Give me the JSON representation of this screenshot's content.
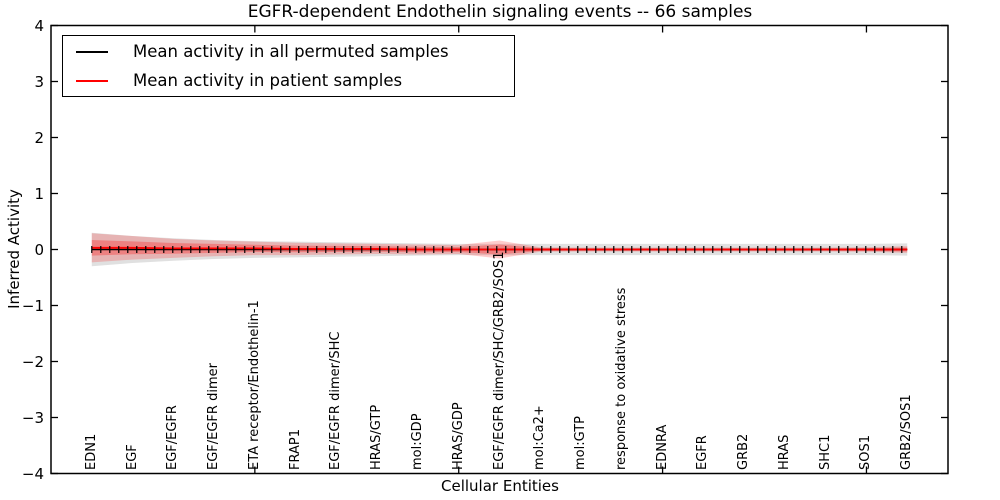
{
  "chart_data": {
    "type": "line",
    "title": "EGFR-dependent Endothelin signaling events -- 66 samples",
    "xlabel": "Cellular Entities",
    "ylabel": "Inferred Activity",
    "ylim": [
      -4,
      4
    ],
    "xlim": [
      0,
      22
    ],
    "ytick_labels": [
      "4",
      "3",
      "2",
      "1",
      "0",
      "−1",
      "−2",
      "−3",
      "−4"
    ],
    "ytick_values": [
      4,
      3,
      2,
      1,
      0,
      -1,
      -2,
      -3,
      -4
    ],
    "xtick_positions": [
      5,
      10,
      15,
      20
    ],
    "grid": false,
    "legend_position": "upper left",
    "categories": [
      "EDN1",
      "EGF",
      "EGF/EGFR",
      "EGF/EGFR dimer",
      "ETA receptor/Endothelin-1",
      "FRAP1",
      "EGF/EGFR dimer/SHC",
      "HRAS/GTP",
      "mol:GDP",
      "HRAS/GDP",
      "EGF/EGFR dimer/SHC/GRB2/SOS1",
      "mol:Ca2+",
      "mol:GTP",
      "response to oxidative stress",
      "EDNRA",
      "EGFR",
      "GRB2",
      "HRAS",
      "SHC1",
      "SOS1",
      "GRB2/SOS1"
    ],
    "series": [
      {
        "name": "Mean activity in all permuted samples",
        "color": "#000000",
        "values": [
          0,
          0,
          0,
          0,
          0,
          0,
          0,
          0,
          0,
          0,
          0,
          0,
          0,
          0,
          0,
          0,
          0,
          0,
          0,
          0,
          0
        ]
      },
      {
        "name": "Mean activity in patient samples",
        "color": "#ff0000",
        "values": [
          0.03,
          0.03,
          0.02,
          0.02,
          0.02,
          0.01,
          0.01,
          0.01,
          0,
          0,
          0,
          0,
          0,
          0,
          0,
          0,
          0,
          0,
          0,
          0,
          0
        ]
      }
    ],
    "bands": [
      {
        "name": "permuted-samples-std",
        "center_series": 0,
        "color": "#999999",
        "opacity": 0.3,
        "half_widths": [
          0.3,
          0.24,
          0.2,
          0.17,
          0.15,
          0.14,
          0.13,
          0.12,
          0.11,
          0.1,
          0.1,
          0.1,
          0.1,
          0.1,
          0.1,
          0.1,
          0.1,
          0.1,
          0.1,
          0.1,
          0.11
        ]
      },
      {
        "name": "patient-samples-std-outer",
        "center_series": 1,
        "color": "#ff0000",
        "opacity": 0.2,
        "half_widths": [
          0.26,
          0.21,
          0.17,
          0.14,
          0.12,
          0.11,
          0.1,
          0.09,
          0.09,
          0.08,
          0.16,
          0.04,
          0.035,
          0.035,
          0.035,
          0.035,
          0.035,
          0.035,
          0.035,
          0.04,
          0.06
        ]
      },
      {
        "name": "patient-samples-std-inner",
        "center_series": 1,
        "color": "#ff0000",
        "opacity": 0.28,
        "half_widths": [
          0.14,
          0.115,
          0.095,
          0.08,
          0.065,
          0.06,
          0.055,
          0.05,
          0.05,
          0.045,
          0.09,
          0.025,
          0.02,
          0.02,
          0.02,
          0.02,
          0.02,
          0.02,
          0.02,
          0.025,
          0.035
        ]
      }
    ],
    "colors": {
      "axis": "#000000",
      "background": "#ffffff",
      "permuted_line": "#000000",
      "patient_line": "#ff0000"
    }
  }
}
